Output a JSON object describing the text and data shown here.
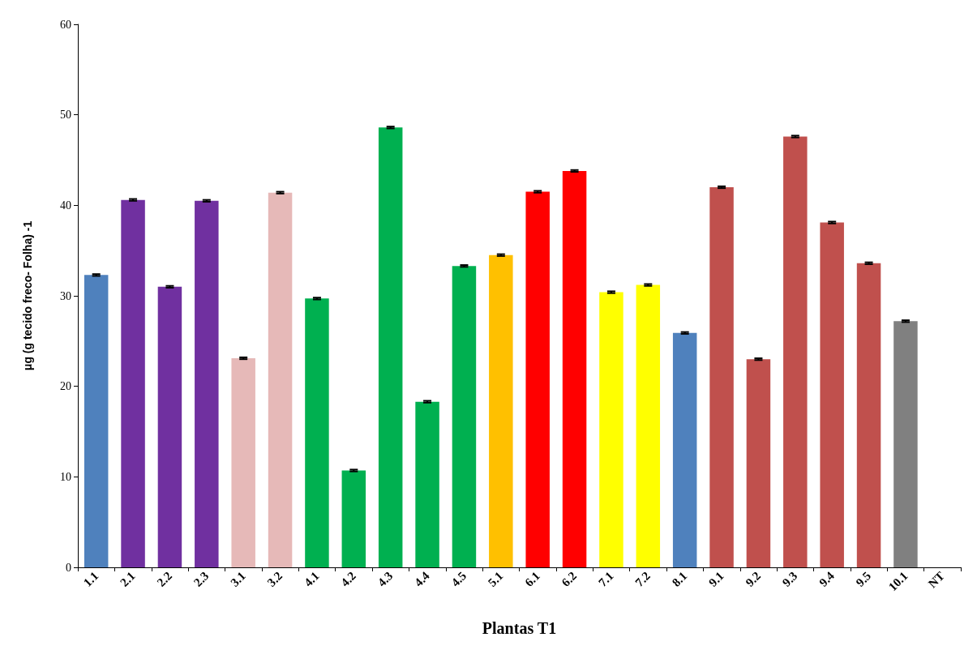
{
  "chart_data": {
    "type": "bar",
    "xlabel": "Plantas T1",
    "ylabel": "μg (g tecido freco- Folha) -1",
    "categories": [
      "1.1",
      "2.1",
      "2.2",
      "2.3",
      "3.1",
      "3.2",
      "4.1",
      "4.2",
      "4.3",
      "4.4",
      "4.5",
      "5.1",
      "6.1",
      "6.2",
      "7.1",
      "7.2",
      "8.1",
      "9.1",
      "9.2",
      "9.3",
      "9.4",
      "9.5",
      "10.1",
      "NT"
    ],
    "values": [
      32.3,
      40.6,
      31.0,
      40.5,
      23.1,
      41.4,
      29.7,
      10.7,
      48.6,
      18.3,
      33.3,
      34.5,
      41.5,
      43.8,
      30.4,
      31.2,
      25.9,
      42.0,
      23.0,
      47.6,
      38.1,
      33.6,
      27.2,
      null
    ],
    "errors": [
      0.1,
      0.1,
      0.1,
      0.1,
      0.1,
      0.1,
      0.1,
      0.1,
      0.1,
      0.1,
      0.1,
      0.1,
      0.1,
      0.1,
      0.1,
      0.1,
      0.1,
      0.1,
      0.1,
      0.1,
      0.1,
      0.1,
      0.1,
      null
    ],
    "colors": [
      "#4f81bd",
      "#7030a0",
      "#7030a0",
      "#7030a0",
      "#e6b9b8",
      "#e6b9b8",
      "#00b050",
      "#00b050",
      "#00b050",
      "#00b050",
      "#00b050",
      "#ffc000",
      "#ff0000",
      "#ff0000",
      "#ffff00",
      "#ffff00",
      "#4f81bd",
      "#c0504d",
      "#c0504d",
      "#c0504d",
      "#c0504d",
      "#c0504d",
      "#808080",
      "#808080"
    ],
    "ylim": [
      0,
      60
    ],
    "yticks": [
      0,
      10,
      20,
      30,
      40,
      50,
      60
    ],
    "grid": false
  }
}
